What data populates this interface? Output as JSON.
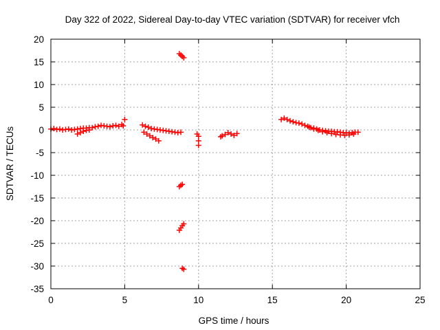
{
  "chart_data": {
    "type": "scatter",
    "title": "Day 322 of 2022, Sidereal Day-to-day VTEC variation (SDTVAR) for receiver vfch",
    "xlabel": "GPS time / hours",
    "ylabel": "SDTVAR / TECUs",
    "xlim": [
      0,
      25
    ],
    "ylim": [
      -35,
      20
    ],
    "xticks": [
      0,
      5,
      10,
      15,
      20,
      25
    ],
    "yticks": [
      20,
      15,
      10,
      5,
      0,
      -5,
      -10,
      -15,
      -20,
      -25,
      -30,
      -35
    ],
    "grid": true,
    "marker": "+",
    "series": [
      {
        "name": "SDTVAR",
        "color": "#ff0000",
        "x": [
          0.0,
          0.2,
          0.4,
          0.6,
          0.8,
          1.0,
          1.2,
          1.4,
          1.6,
          1.8,
          2.0,
          2.2,
          2.4,
          2.6,
          2.8,
          3.0,
          3.2,
          3.4,
          3.6,
          3.8,
          4.0,
          4.2,
          4.4,
          4.6,
          4.8,
          5.0,
          4.9,
          1.8,
          2.0,
          2.2,
          2.4,
          2.6,
          6.2,
          6.4,
          6.6,
          6.8,
          7.0,
          7.2,
          7.4,
          7.6,
          7.8,
          8.0,
          8.2,
          8.4,
          8.6,
          8.8,
          6.3,
          6.5,
          6.7,
          6.9,
          7.1,
          7.3,
          8.7,
          8.8,
          8.9,
          9.0,
          9.9,
          10.0,
          10.0,
          10.0,
          8.7,
          8.8,
          8.9,
          8.7,
          8.8,
          8.9,
          9.0,
          8.9,
          9.0,
          11.5,
          11.6,
          11.8,
          12.0,
          12.2,
          12.4,
          12.6,
          15.6,
          15.8,
          16.0,
          16.2,
          16.4,
          16.6,
          16.8,
          17.0,
          17.2,
          17.4,
          17.6,
          17.8,
          18.0,
          18.2,
          18.4,
          18.6,
          18.8,
          19.0,
          19.2,
          19.4,
          19.6,
          19.8,
          20.0,
          20.2,
          20.4,
          20.6,
          20.8,
          17.5,
          17.8,
          18.1,
          18.4,
          18.7,
          19.0,
          19.3,
          19.6,
          19.9,
          20.2,
          20.5
        ],
        "y": [
          0.2,
          0.3,
          0.1,
          0.2,
          0.0,
          0.1,
          0.2,
          0.0,
          0.1,
          0.2,
          0.3,
          0.4,
          0.4,
          0.5,
          0.5,
          0.7,
          0.8,
          1.0,
          0.9,
          0.8,
          0.7,
          0.9,
          1.0,
          0.8,
          1.2,
          2.3,
          0.9,
          -0.9,
          -0.6,
          -0.3,
          -0.1,
          0.0,
          1.1,
          0.8,
          0.6,
          0.3,
          0.2,
          0.1,
          0.0,
          -0.1,
          -0.2,
          -0.3,
          -0.4,
          -0.5,
          -0.6,
          -0.5,
          -0.5,
          -0.9,
          -1.3,
          -1.7,
          -2.0,
          -2.4,
          16.8,
          16.5,
          16.2,
          15.9,
          -0.9,
          -1.4,
          -2.4,
          -3.4,
          -12.5,
          -12.2,
          -12.0,
          -22.1,
          -21.6,
          -21.1,
          -20.7,
          -30.5,
          -30.7,
          -1.5,
          -1.3,
          -1.0,
          -0.6,
          -0.9,
          -1.2,
          -0.8,
          2.3,
          2.6,
          2.3,
          2.0,
          1.8,
          1.6,
          1.5,
          1.3,
          1.0,
          0.8,
          0.5,
          0.4,
          0.2,
          0.0,
          -0.1,
          -0.2,
          -0.3,
          -0.3,
          -0.4,
          -0.4,
          -0.5,
          -0.6,
          -0.6,
          -0.7,
          -0.6,
          -0.5,
          -0.5,
          0.6,
          0.2,
          -0.1,
          -0.4,
          -0.6,
          -0.8,
          -1.0,
          -1.1,
          -1.2,
          -1.1,
          -0.9
        ]
      }
    ]
  }
}
